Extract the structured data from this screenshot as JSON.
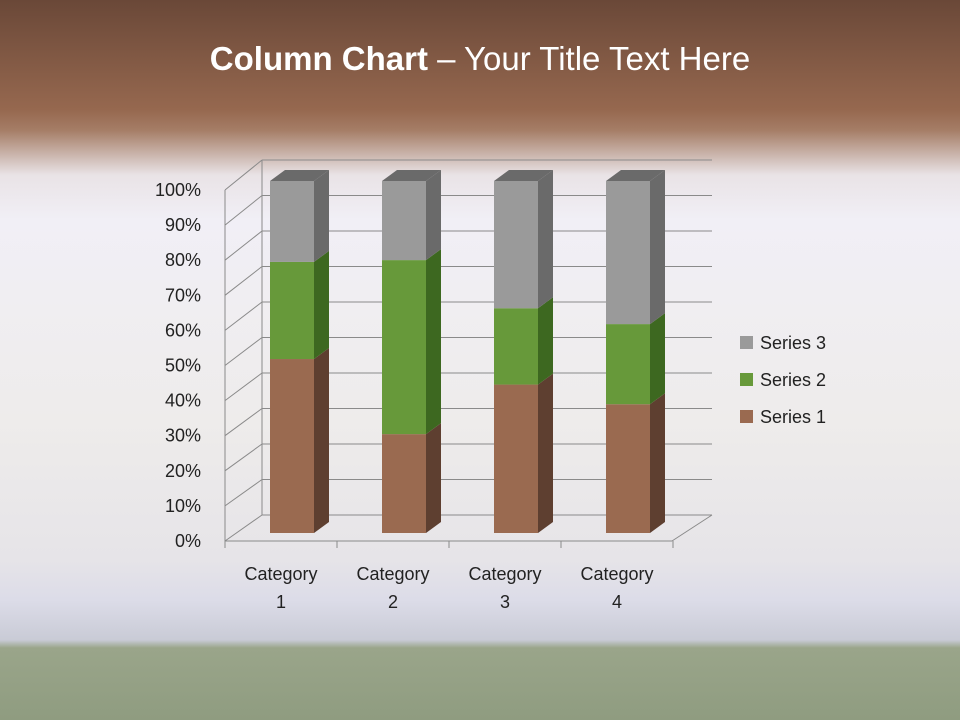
{
  "title": {
    "bold": "Column Chart",
    "rest": " – Your Title Text Here"
  },
  "chart_data": {
    "type": "bar",
    "stacking": "percent",
    "three_d": true,
    "categories": [
      [
        "Category",
        "1"
      ],
      [
        "Category",
        "2"
      ],
      [
        "Category",
        "3"
      ],
      [
        "Category",
        "4"
      ]
    ],
    "series": [
      {
        "name": "Series 1",
        "values": [
          4.3,
          2.5,
          3.5,
          4.5
        ],
        "color": "#9a6a50",
        "side": "#5e3f30"
      },
      {
        "name": "Series 2",
        "values": [
          2.4,
          4.4,
          1.8,
          2.8
        ],
        "color": "#67993a",
        "side": "#3d6820"
      },
      {
        "name": "Series 3",
        "values": [
          2,
          2,
          3,
          5
        ],
        "color": "#9a9a9a",
        "side": "#6a6a6a"
      }
    ],
    "yticks": [
      "0%",
      "10%",
      "20%",
      "30%",
      "40%",
      "50%",
      "60%",
      "70%",
      "80%",
      "90%",
      "100%"
    ],
    "ylim": [
      0,
      100
    ],
    "grid": true,
    "legend": "right"
  }
}
